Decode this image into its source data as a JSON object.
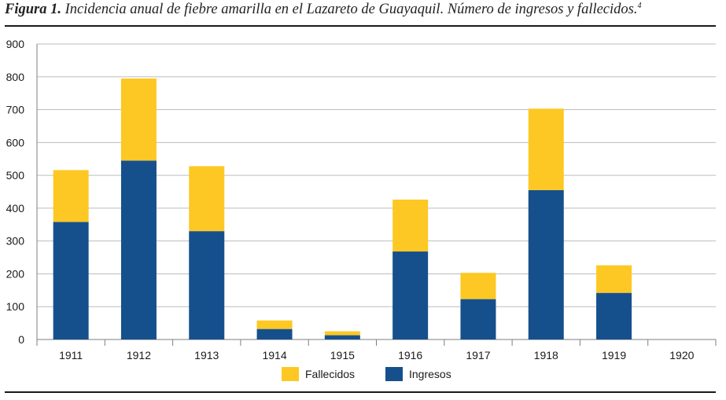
{
  "caption": {
    "figure": "Figura 1.",
    "text": "Incidencia anual de fiebre amarilla en el Lazareto de Guayaquil. Número de ingresos y fallecidos.",
    "sup": "4"
  },
  "colors": {
    "ingresos": "#16508c",
    "fallecidos": "#fdc823",
    "grid": "#bdbdbd",
    "axis": "#7f7f7f"
  },
  "chart_data": {
    "type": "bar",
    "stacked": true,
    "categories": [
      "1911",
      "1912",
      "1913",
      "1914",
      "1915",
      "1916",
      "1917",
      "1918",
      "1919",
      "1920"
    ],
    "series": [
      {
        "name": "Ingresos",
        "values": [
          358,
          545,
          330,
          32,
          13,
          268,
          123,
          455,
          142,
          0
        ]
      },
      {
        "name": "Fallecidos",
        "values": [
          158,
          250,
          198,
          26,
          12,
          158,
          80,
          248,
          84,
          0
        ]
      }
    ],
    "yticks": [
      "0",
      "100",
      "200",
      "300",
      "400",
      "500",
      "600",
      "700",
      "800",
      "900"
    ],
    "ylim": [
      0,
      900
    ],
    "grid": true,
    "legend_position": "bottom"
  },
  "legend": {
    "fallecidos": "Fallecidos",
    "ingresos": "Ingresos"
  }
}
